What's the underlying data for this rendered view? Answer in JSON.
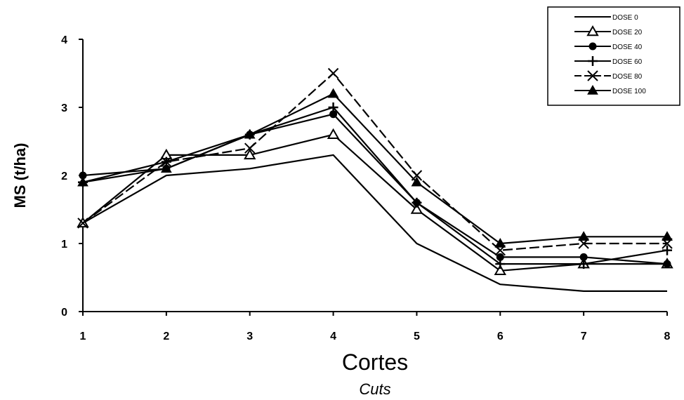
{
  "chart_data": {
    "type": "line",
    "xlabel": "Cortes",
    "xlabel_sub": "Cuts",
    "ylabel": "MS (t/ha)",
    "x": [
      1,
      2,
      3,
      4,
      5,
      6,
      7,
      8
    ],
    "xlim": [
      1,
      8
    ],
    "ylim": [
      0,
      4
    ],
    "yticks": [
      0,
      1,
      2,
      3,
      4
    ],
    "grid": false,
    "legend_position": "top-right",
    "series": [
      {
        "name": "DOSE   0",
        "marker": "none",
        "dash": "solid",
        "values": [
          1.3,
          2.0,
          2.1,
          2.3,
          1.0,
          0.4,
          0.3,
          0.3
        ]
      },
      {
        "name": "DOSE   20",
        "marker": "triangle-open",
        "dash": "solid",
        "values": [
          1.3,
          2.3,
          2.3,
          2.6,
          1.5,
          0.6,
          0.7,
          0.7
        ]
      },
      {
        "name": "DOSE   40",
        "marker": "circle-filled",
        "dash": "solid",
        "values": [
          2.0,
          2.1,
          2.6,
          2.9,
          1.6,
          0.8,
          0.8,
          0.7
        ]
      },
      {
        "name": "DOSE   60",
        "marker": "plus",
        "dash": "solid",
        "values": [
          1.9,
          2.2,
          2.6,
          3.0,
          1.6,
          0.7,
          0.7,
          0.9
        ]
      },
      {
        "name": "DOSE   80",
        "marker": "x",
        "dash": "dashed",
        "values": [
          1.3,
          2.2,
          2.4,
          3.5,
          2.0,
          0.9,
          1.0,
          1.0
        ]
      },
      {
        "name": "DOSE  100",
        "marker": "triangle-filled",
        "dash": "solid",
        "values": [
          1.9,
          2.1,
          2.6,
          3.2,
          1.9,
          1.0,
          1.1,
          1.1
        ]
      }
    ]
  }
}
